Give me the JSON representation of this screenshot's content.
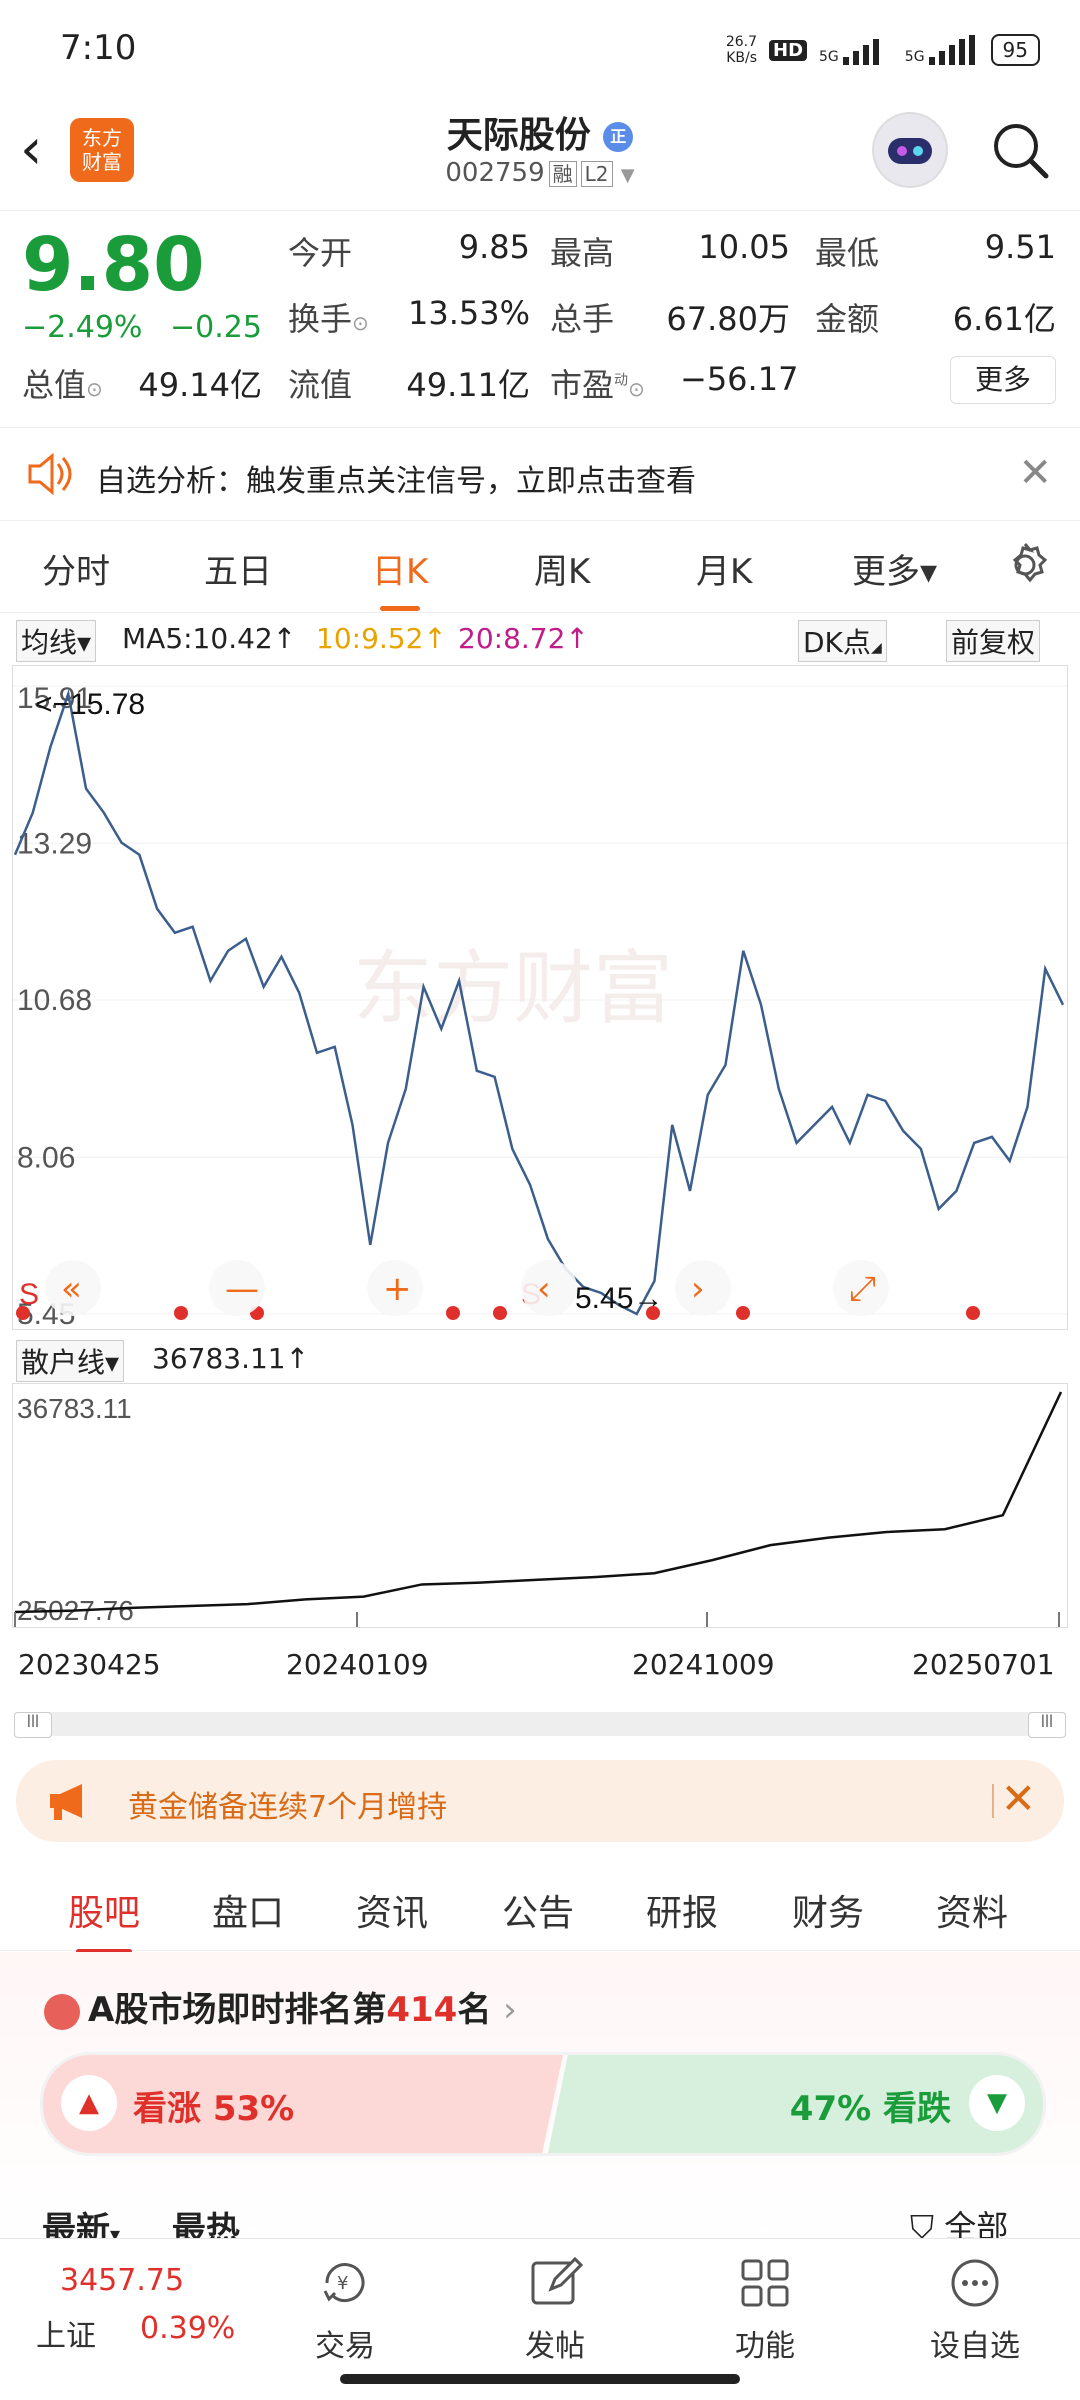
{
  "status": {
    "time": "7:10",
    "net_speed": "26.7\nKB/s",
    "hd": "HD",
    "sig1": "5G",
    "sig2": "5G",
    "battery": "95"
  },
  "header": {
    "logo": "东方\n财富",
    "name": "天际股份",
    "badge": "正",
    "code": "002759",
    "tag1": "融",
    "tag2": "L2"
  },
  "quote": {
    "price": "9.80",
    "change_pct": "−2.49%",
    "change": "−0.25",
    "open_label": "今开",
    "open": "9.85",
    "high_label": "最高",
    "high": "10.05",
    "low_label": "最低",
    "low": "9.51",
    "turnover_label": "换手",
    "turnover": "13.53%",
    "volume_label": "总手",
    "volume": "67.80万",
    "amount_label": "金额",
    "amount": "6.61亿",
    "mktcap_label": "总值",
    "mktcap": "49.14亿",
    "float_label": "流值",
    "float": "49.11亿",
    "pe_label": "市盈",
    "pe_sup": "动",
    "pe": "−56.17",
    "more": "更多"
  },
  "alert": {
    "text": "自选分析：触发重点关注信号，立即点击查看"
  },
  "ktabs": [
    "分时",
    "五日",
    "日K",
    "周K",
    "月K",
    "更多▾"
  ],
  "ma": {
    "sel": "均线▾",
    "ma5": "MA5:10.42",
    "ma10": "10:9.52",
    "ma20": "20:8.72",
    "dk": "DK点",
    "fq": "前复权"
  },
  "chart_data": [
    {
      "type": "line",
      "title": "",
      "ylim": [
        5.45,
        15.91
      ],
      "y_ticks": [
        "15.91",
        "13.29",
        "10.68",
        "8.06",
        "5.45"
      ],
      "annotations": [
        "<−15.78",
        "5.45→",
        "S",
        "S"
      ],
      "series": [
        {
          "name": "",
          "values": [
            13.1,
            13.8,
            14.9,
            15.78,
            14.2,
            13.8,
            13.3,
            13.1,
            12.2,
            11.8,
            11.9,
            11.0,
            11.5,
            11.7,
            10.9,
            11.4,
            10.8,
            9.8,
            9.9,
            8.6,
            6.6,
            8.3,
            9.2,
            10.9,
            10.2,
            11.0,
            9.5,
            9.4,
            8.2,
            7.6,
            6.7,
            6.2,
            5.9,
            5.8,
            5.6,
            5.45,
            6.0,
            8.6,
            7.5,
            9.1,
            9.6,
            11.5,
            10.6,
            9.2,
            8.3,
            8.6,
            8.9,
            8.3,
            9.1,
            9.0,
            8.5,
            8.2,
            7.2,
            7.5,
            8.3,
            8.4,
            8.0,
            8.9,
            11.2,
            10.6
          ]
        }
      ]
    },
    {
      "type": "line",
      "title": "",
      "ylim": [
        25027.76,
        36783.11
      ],
      "y_ticks": [
        "36783.11",
        "25027.76"
      ],
      "x_ticks": [
        "20230425",
        "20240109",
        "20241009",
        "20250701"
      ],
      "series": [
        {
          "name": "散户线",
          "values": [
            25027.76,
            25100,
            25250,
            25350,
            25450,
            25700,
            25850,
            26500,
            26600,
            26750,
            26900,
            27100,
            27800,
            28600,
            29000,
            29300,
            29450,
            30200,
            36783.11
          ]
        }
      ]
    }
  ],
  "chart_ctrl": {
    "sel": "散户线▾",
    "value": "36783.11"
  },
  "banner": {
    "text": "黄金储备连续7个月增持"
  },
  "btabs": [
    "股吧",
    "盘口",
    "资讯",
    "公告",
    "研报",
    "财务",
    "资料"
  ],
  "rank": {
    "pre": "A股市场即时排名第",
    "num": "414",
    "post": "名",
    "up": "看涨 53%",
    "down": "47% 看跌",
    "sub1": "最新",
    "sub2": "最热",
    "sub3": "全部"
  },
  "nav": {
    "index_value": "3457.75",
    "index_name": "上证",
    "index_pct": "0.39%",
    "trade": "交易",
    "post": "发帖",
    "func": "功能",
    "watch": "设自选"
  }
}
